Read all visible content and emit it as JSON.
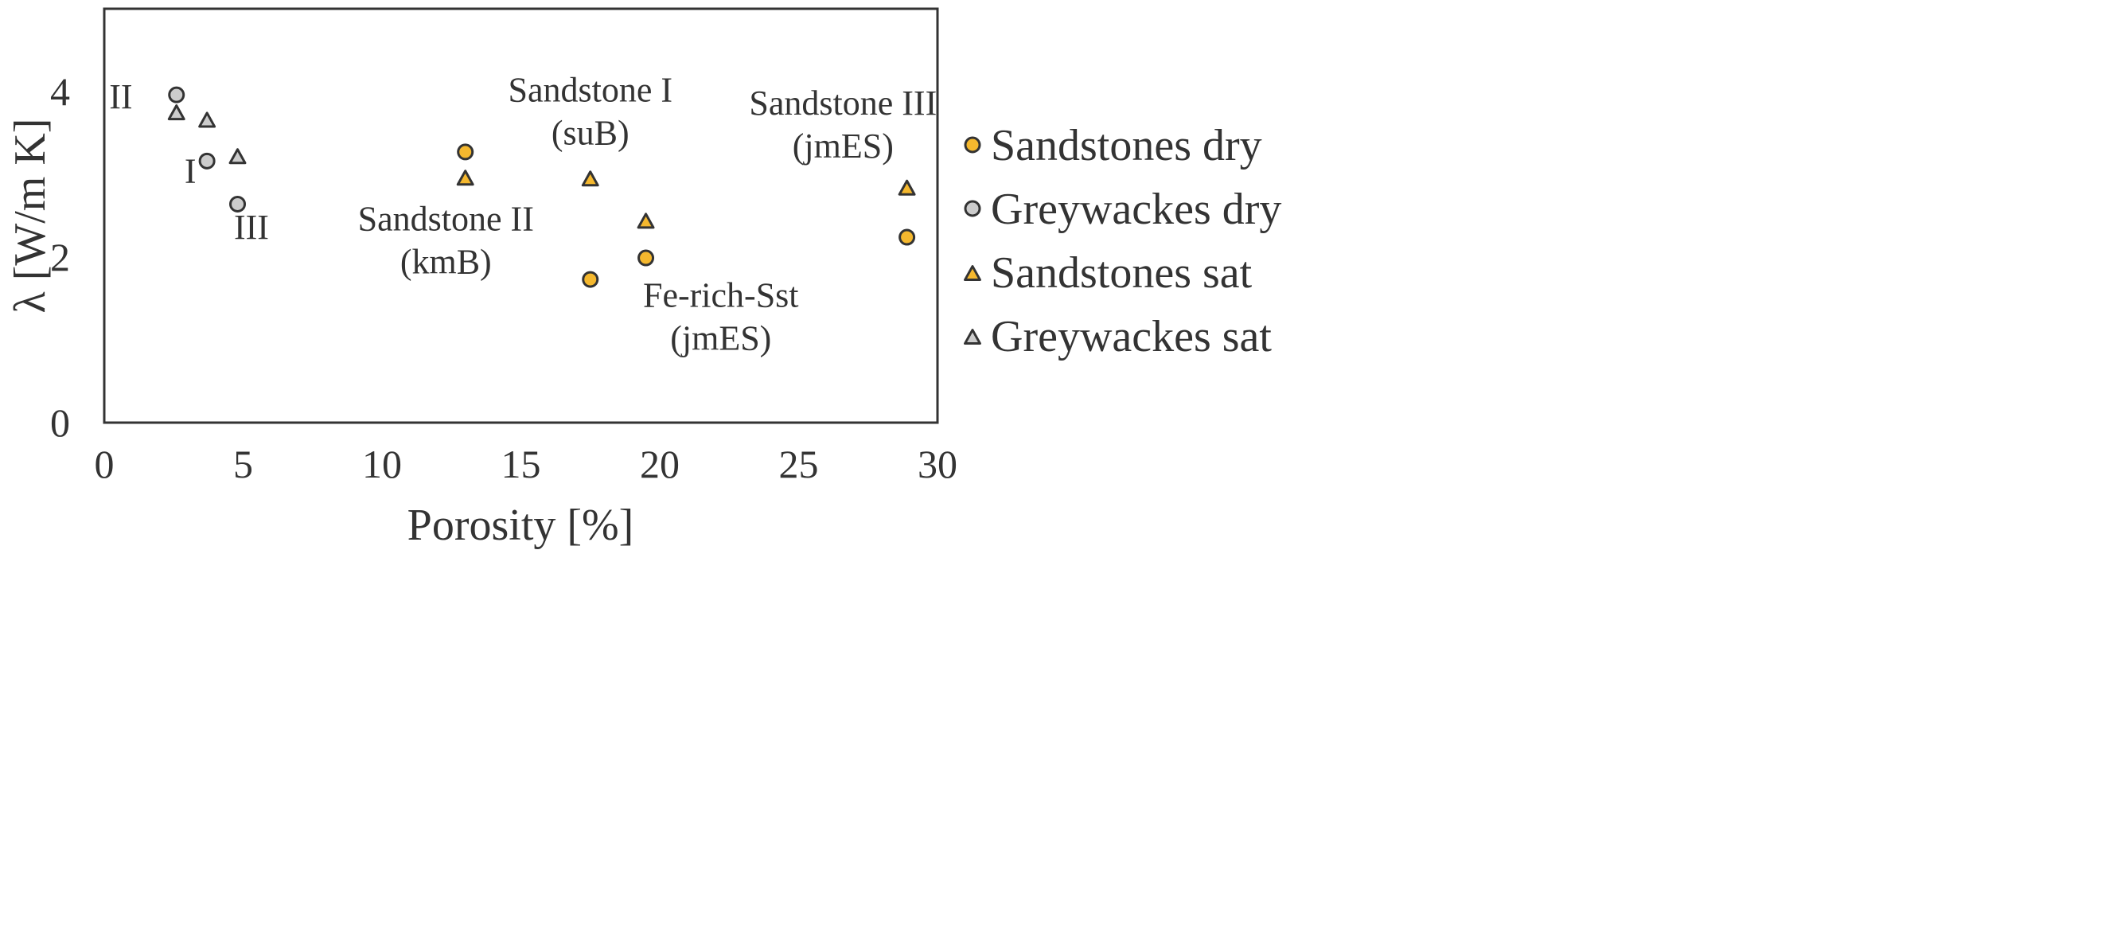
{
  "chart_data": {
    "type": "scatter",
    "title": "",
    "xlabel": "Porosity [%]",
    "ylabel": "λ [W/m K]",
    "xlim": [
      0,
      30
    ],
    "ylim": [
      0,
      5
    ],
    "xticks": [
      0,
      5,
      10,
      15,
      20,
      25,
      30
    ],
    "yticks": [
      0,
      2,
      4
    ],
    "grid": false,
    "legend_position": "right",
    "series": [
      {
        "name": "Sandstones dry",
        "marker": "circle",
        "color": "#F5B82E",
        "points": [
          [
            13.0,
            3.27
          ],
          [
            17.5,
            1.73
          ],
          [
            19.5,
            1.99
          ],
          [
            28.9,
            2.24
          ]
        ]
      },
      {
        "name": "Greywackes dry",
        "marker": "circle",
        "color": "#CCCCCC",
        "points": [
          [
            2.6,
            3.96
          ],
          [
            3.7,
            3.16
          ],
          [
            4.8,
            2.64
          ]
        ]
      },
      {
        "name": "Sandstones sat",
        "marker": "triangle",
        "color": "#F5B82E",
        "points": [
          [
            13.0,
            2.95
          ],
          [
            17.5,
            2.94
          ],
          [
            19.5,
            2.43
          ],
          [
            28.9,
            2.83
          ]
        ]
      },
      {
        "name": "Greywackes sat",
        "marker": "triangle",
        "color": "#CCCCCC",
        "points": [
          [
            2.6,
            3.74
          ],
          [
            3.7,
            3.65
          ],
          [
            4.8,
            3.21
          ]
        ]
      }
    ],
    "annotations": [
      {
        "lines": [
          "II"
        ],
        "x": 0.6,
        "y": 3.8
      },
      {
        "lines": [
          "I"
        ],
        "x": 3.1,
        "y": 2.9
      },
      {
        "lines": [
          "III"
        ],
        "x": 5.3,
        "y": 2.22
      },
      {
        "lines": [
          "Sandstone II",
          "(kmB)"
        ],
        "x": 12.3,
        "y": 2.32
      },
      {
        "lines": [
          "Sandstone I",
          "(suB)"
        ],
        "x": 17.5,
        "y": 3.88
      },
      {
        "lines": [
          "Fe-rich-Sst",
          "(jmES)"
        ],
        "x": 22.2,
        "y": 1.4
      },
      {
        "lines": [
          "Sandstone III",
          "(jmES)"
        ],
        "x": 26.6,
        "y": 3.72
      }
    ]
  }
}
